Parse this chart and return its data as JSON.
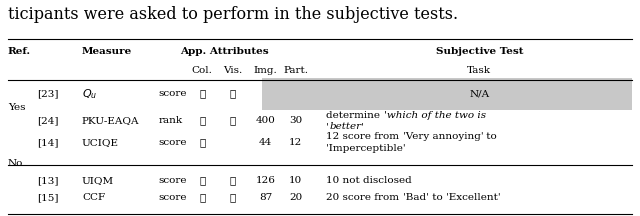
{
  "title_text": "ticipants were asked to perform in the subjective tests.",
  "rows": [
    {
      "ref_group": "Yes",
      "ref": "[23]",
      "measure_math": true,
      "measure": "Q_u",
      "app": "score",
      "col": true,
      "vis": true,
      "img": "",
      "part": "",
      "na_highlight": true,
      "task_parts": [
        {
          "text": "N/A",
          "italic": false
        }
      ]
    },
    {
      "ref_group": "",
      "ref": "[24]",
      "measure_math": false,
      "measure": "PKU-EAQA",
      "app": "rank",
      "col": true,
      "vis": true,
      "img": "400",
      "part": "30",
      "na_highlight": false,
      "task_line1": [
        {
          "text": "determine ",
          "italic": false
        },
        {
          "text": "'which of the two is",
          "italic": true
        }
      ],
      "task_line2": [
        {
          "text": "'",
          "italic": false
        },
        {
          "text": "better",
          "italic": true
        },
        {
          "text": "'",
          "italic": false
        }
      ]
    },
    {
      "ref_group": "No",
      "ref": "[14]",
      "measure_math": false,
      "measure": "UCIQE",
      "app": "score",
      "col": true,
      "vis": false,
      "img": "44",
      "part": "12",
      "na_highlight": false,
      "task_line1": [
        {
          "text": "12 score from ",
          "italic": false
        },
        {
          "text": "'Very annoying'",
          "italic": false
        },
        {
          "text": " to",
          "italic": false
        }
      ],
      "task_line2": [
        {
          "text": "'Imperceptible'",
          "italic": false
        }
      ]
    },
    {
      "ref_group": "",
      "ref": "[13]",
      "measure_math": false,
      "measure": "UIQM",
      "app": "score",
      "col": true,
      "vis": true,
      "img": "126",
      "part": "10",
      "na_highlight": false,
      "task_line1": [
        {
          "text": "10 not disclosed",
          "italic": false
        }
      ],
      "task_line2": []
    },
    {
      "ref_group": "",
      "ref": "[15]",
      "measure_math": false,
      "measure": "CCF",
      "app": "score",
      "col": true,
      "vis": true,
      "img": "87",
      "part": "20",
      "na_highlight": false,
      "task_line1": [
        {
          "text": "20 score from ",
          "italic": false
        },
        {
          "text": "'Bad'",
          "italic": false
        },
        {
          "text": " to ",
          "italic": false
        },
        {
          "text": "'Excellent'",
          "italic": false
        }
      ],
      "task_line2": []
    }
  ],
  "highlight_color": "#c8c8c8",
  "font_size": 7.5,
  "title_font_size": 11.5
}
